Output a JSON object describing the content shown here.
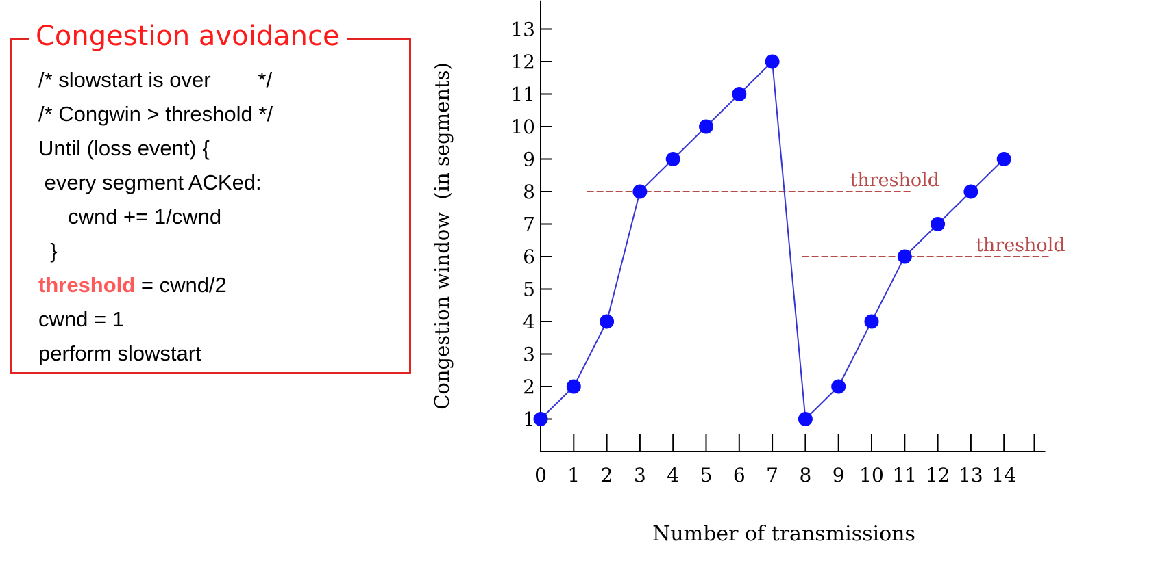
{
  "panel": {
    "title": "Congestion avoidance",
    "lines": [
      {
        "text": "/* slowstart is over        */"
      },
      {
        "text": "/* Congwin > threshold */"
      },
      {
        "text": "Until (loss event) {"
      },
      {
        "text": " every segment ACKed:"
      },
      {
        "text": "     cwnd += 1/cwnd"
      },
      {
        "text": "  }"
      },
      {
        "keyword": "threshold",
        "text": " = cwnd/2"
      },
      {
        "text": "cwnd = 1"
      },
      {
        "text": "perform slowstart"
      }
    ],
    "border_color": "#e32222",
    "title_color": "#ff1a1a",
    "keyword_color": "#ff5a5a"
  },
  "chart_data": {
    "type": "line",
    "xlabel": "Number of transmissions",
    "ylabel": "Congestion window  (in segments)",
    "x_ticks": [
      0,
      1,
      2,
      3,
      4,
      5,
      6,
      7,
      8,
      9,
      10,
      11,
      12,
      13,
      14
    ],
    "y_ticks": [
      1,
      2,
      3,
      4,
      5,
      6,
      7,
      8,
      9,
      10,
      11,
      12,
      13
    ],
    "xlim": [
      0,
      15
    ],
    "ylim": [
      0,
      13.5
    ],
    "grid": false,
    "series": [
      {
        "x": [
          0,
          1,
          2,
          3,
          4,
          5,
          6,
          7,
          8,
          9,
          10,
          11,
          12,
          13,
          14
        ],
        "y": [
          1,
          2,
          4,
          8,
          9,
          10,
          11,
          12,
          1,
          2,
          4,
          6,
          7,
          8,
          9
        ],
        "color": "#3535d6",
        "marker_color": "#0a0aff"
      }
    ],
    "threshold_lines": [
      {
        "label": "threshold",
        "y": 8,
        "x_from": 1.4,
        "x_to": 11.2,
        "label_x": 10.7,
        "color": "#b84a4a"
      },
      {
        "label": "threshold",
        "y": 6,
        "x_from": 7.9,
        "x_to": 15.4,
        "label_x": 14.5,
        "color": "#b84a4a"
      }
    ]
  }
}
